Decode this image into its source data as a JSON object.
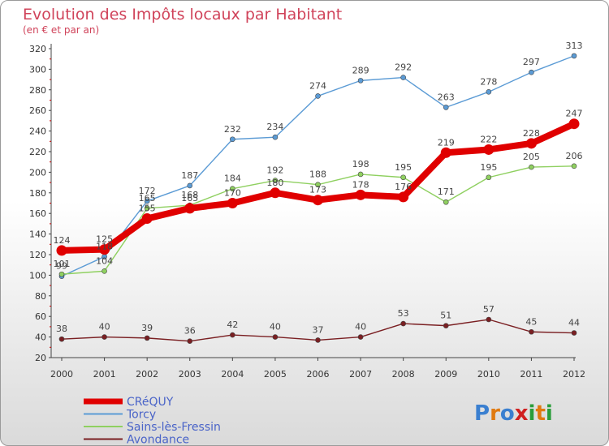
{
  "chart_data": {
    "type": "line",
    "title": "Evolution des Impôts locaux par Habitant",
    "subtitle": "(en € et par an)",
    "categories": [
      "2000",
      "2001",
      "2002",
      "2003",
      "2004",
      "2005",
      "2006",
      "2007",
      "2008",
      "2009",
      "2010",
      "2011",
      "2012"
    ],
    "ylim": [
      20,
      320
    ],
    "yticks": [
      20,
      40,
      60,
      80,
      100,
      120,
      140,
      160,
      180,
      200,
      220,
      240,
      260,
      280,
      300,
      320
    ],
    "grid": false,
    "legend": "bottom-left",
    "series": [
      {
        "name": "Torcy",
        "color": "#5b9bd5",
        "values": [
          99,
          118,
          172,
          187,
          232,
          234,
          274,
          289,
          292,
          263,
          278,
          297,
          313
        ]
      },
      {
        "name": "Sains-lès-Fressin",
        "color": "#8fd060",
        "values": [
          101,
          104,
          165,
          168,
          184,
          192,
          188,
          198,
          195,
          171,
          195,
          205,
          206
        ]
      },
      {
        "name": "Avondance",
        "color": "#7a1f22",
        "values": [
          38,
          40,
          39,
          36,
          42,
          40,
          37,
          40,
          53,
          51,
          57,
          45,
          44
        ]
      },
      {
        "name": "CRéQUY",
        "color": "#e00000",
        "values": [
          124,
          125,
          155,
          165,
          170,
          180,
          173,
          178,
          176,
          219,
          222,
          228,
          247
        ]
      }
    ]
  },
  "legend_items": [
    "CRéQUY",
    "Torcy",
    "Sains-lès-Fressin",
    "Avondance"
  ],
  "logo": {
    "text": "Proxiti"
  }
}
